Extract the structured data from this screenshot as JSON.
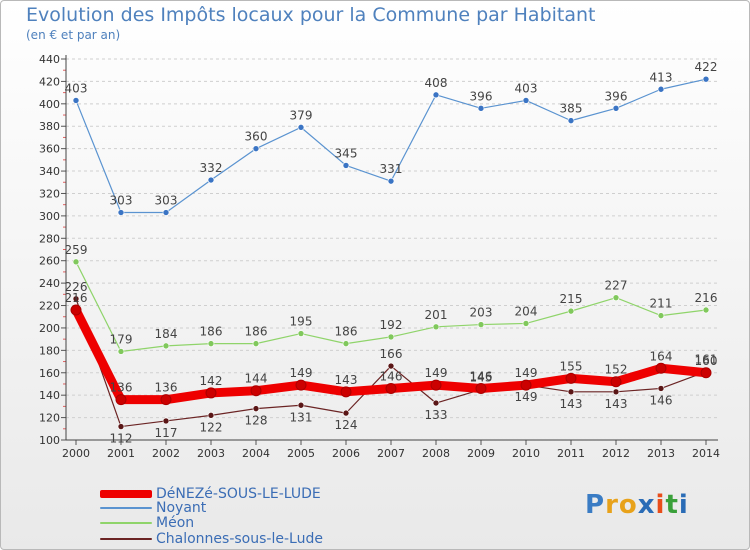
{
  "header": {
    "title": "Evolution des Impôts locaux pour la Commune par Habitant",
    "subtitle": "(en € et par an)"
  },
  "logo": {
    "text": "Proxiti"
  },
  "chart_data": {
    "type": "line",
    "title": "Evolution des Impôts locaux pour la Commune par Habitant",
    "subtitle": "(en € et par an)",
    "xlabel": "",
    "ylabel": "",
    "categories": [
      "2000",
      "2001",
      "2002",
      "2003",
      "2004",
      "2005",
      "2006",
      "2007",
      "2008",
      "2009",
      "2010",
      "2011",
      "2012",
      "2013",
      "2014"
    ],
    "ylim": [
      100,
      440
    ],
    "yticks": [
      100,
      120,
      140,
      160,
      180,
      200,
      220,
      240,
      260,
      280,
      300,
      320,
      340,
      360,
      380,
      400,
      420,
      440
    ],
    "grid": true,
    "legend_position": "bottom-left",
    "series": [
      {
        "name": "Noyant",
        "color": "#5a93d0",
        "marker": "#3a74c4",
        "values": [
          403,
          303,
          303,
          332,
          360,
          379,
          345,
          331,
          408,
          396,
          403,
          385,
          396,
          413,
          422
        ],
        "labels": [
          "403",
          "303",
          "303",
          "332",
          "360",
          "379",
          "345",
          "331",
          "408",
          "396",
          "403",
          "385",
          "396",
          "413",
          "422"
        ]
      },
      {
        "name": "Méon",
        "color": "#8fd46a",
        "marker": "#80c85c",
        "values": [
          259,
          179,
          184,
          186,
          186,
          195,
          186,
          192,
          201,
          203,
          204,
          215,
          227,
          211,
          216
        ],
        "labels": [
          "259",
          "179",
          "184",
          "186",
          "186",
          "195",
          "186",
          "192",
          "201",
          "203",
          "204",
          "215",
          "227",
          "211",
          "216"
        ]
      },
      {
        "name": "Chalonnes-sous-le-Lude",
        "color": "#6b2424",
        "marker": "#5a1616",
        "values": [
          226,
          112,
          117,
          122,
          128,
          131,
          124,
          166,
          133,
          145,
          149,
          143,
          143,
          146,
          161
        ],
        "labels": [
          "226",
          "112",
          "117",
          "122",
          "128",
          "131",
          "124",
          "166",
          "133",
          "145",
          "149",
          "143",
          "143",
          "146",
          "161"
        ]
      },
      {
        "name": "DéNEZé-SOUS-LE-LUDE",
        "color": "#ee0000",
        "marker": "#cc0000",
        "values": [
          216,
          136,
          136,
          142,
          144,
          149,
          143,
          146,
          149,
          146,
          149,
          155,
          152,
          164,
          160
        ],
        "labels": [
          "216",
          "136",
          "136",
          "142",
          "144",
          "149",
          "143",
          "146",
          "149",
          "146",
          "149",
          "155",
          "152",
          "164",
          "160"
        ]
      }
    ]
  },
  "legend": {
    "items": [
      {
        "label": "DéNEZé-SOUS-LE-LUDE",
        "color": "#ee0000"
      },
      {
        "label": "Noyant",
        "color": "#5a93d0"
      },
      {
        "label": "Méon",
        "color": "#8fd46a"
      },
      {
        "label": "Chalonnes-sous-le-Lude",
        "color": "#6b2424"
      }
    ]
  }
}
